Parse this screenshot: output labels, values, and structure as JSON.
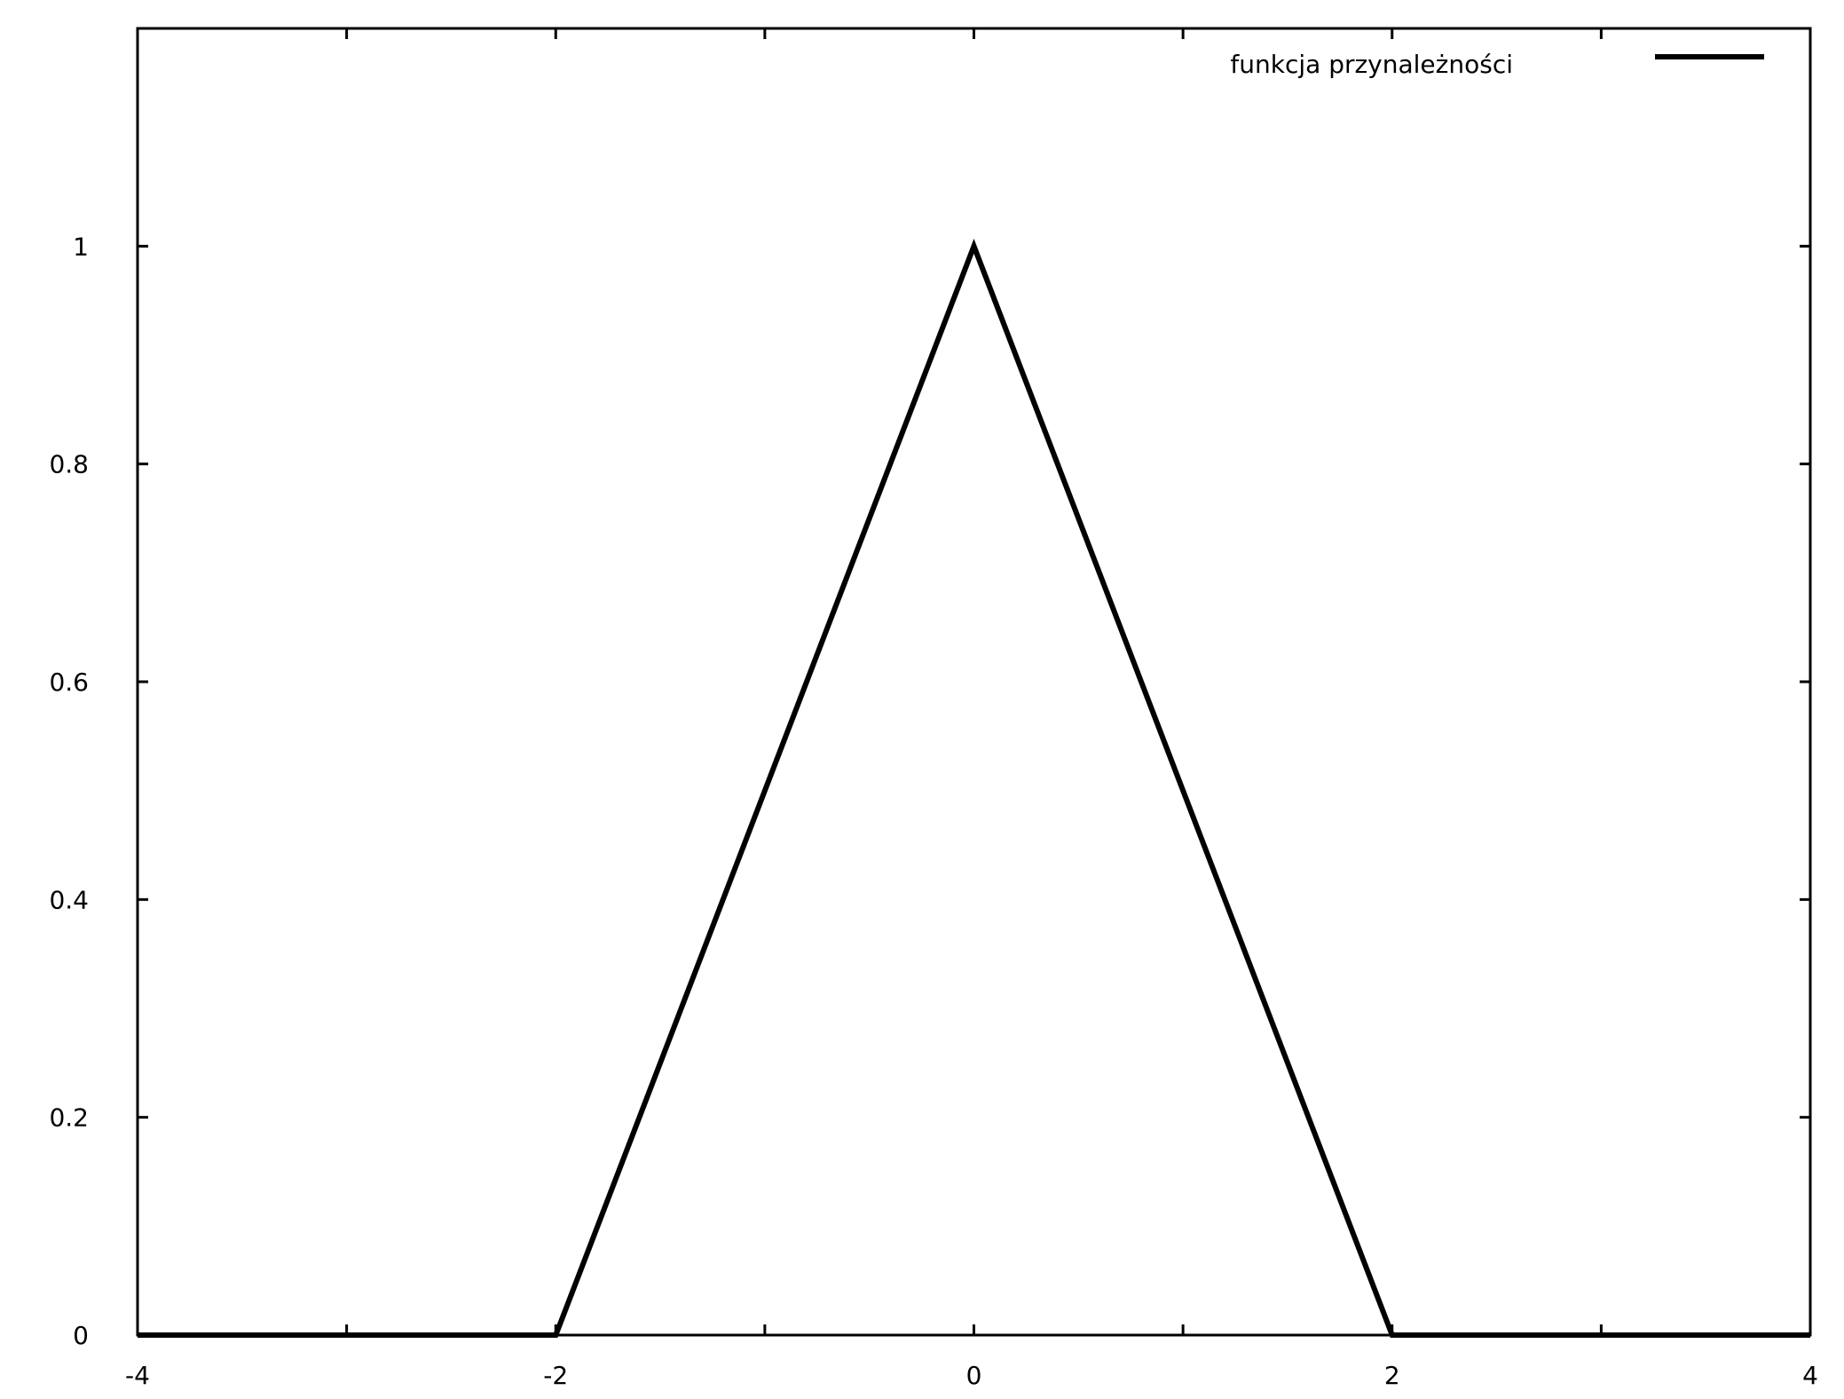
{
  "chart_data": {
    "type": "line",
    "title": "",
    "xlabel": "",
    "ylabel": "",
    "xlim": [
      -4,
      4
    ],
    "ylim": [
      0,
      1.2
    ],
    "x_ticks": [
      -4,
      -2,
      0,
      2,
      4
    ],
    "x_minor_ticks": [
      -3,
      -1,
      1,
      3
    ],
    "y_ticks": [
      0,
      0.2,
      0.4,
      0.6,
      0.8,
      1
    ],
    "x_tick_labels": [
      "-4",
      "-2",
      "0",
      "2",
      "4"
    ],
    "y_tick_labels": [
      "0",
      "0.2",
      "0.4",
      "0.6",
      "0.8",
      "1"
    ],
    "grid": false,
    "legend_position": "top-right",
    "series": [
      {
        "name": "funkcja przynależności",
        "color": "#000000",
        "x": [
          -4,
          -2,
          0,
          2,
          4
        ],
        "y": [
          0,
          0,
          1,
          0,
          0
        ]
      }
    ]
  }
}
